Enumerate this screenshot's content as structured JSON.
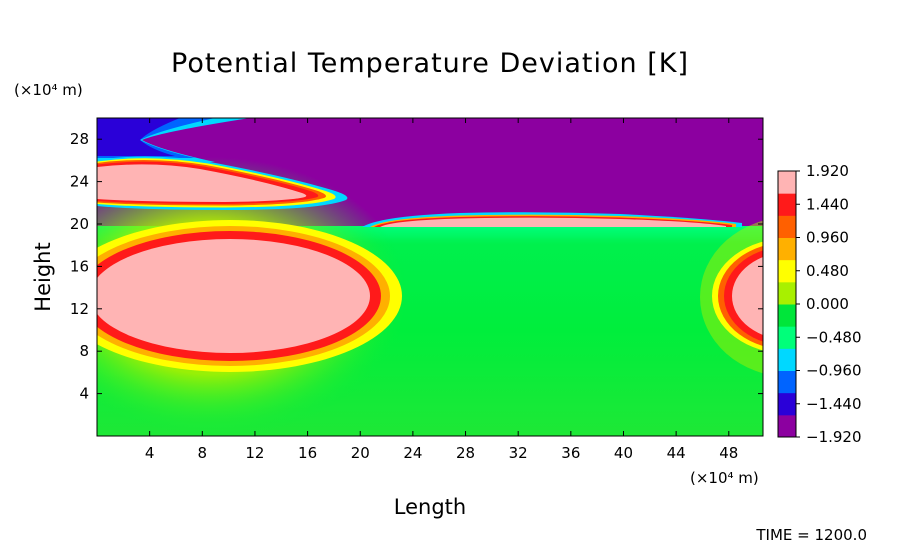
{
  "chart_data": {
    "type": "heatmap",
    "title": "Potential Temperature Deviation [K]",
    "xlabel": "Length",
    "ylabel": "Height",
    "x_unit": "(×10⁴ m)",
    "y_unit": "(×10⁴ m)",
    "xlim": [
      0,
      50.6
    ],
    "ylim": [
      0,
      30
    ],
    "x_ticks": [
      "4",
      "8",
      "12",
      "16",
      "20",
      "24",
      "28",
      "32",
      "36",
      "40",
      "44",
      "48"
    ],
    "y_ticks": [
      "4",
      "8",
      "12",
      "16",
      "20",
      "24",
      "28"
    ],
    "colorbar": {
      "min": -1.92,
      "max": 1.92,
      "tick_labels": [
        "1.920",
        "1.440",
        "0.960",
        "0.480",
        "0.000",
        "−0.480",
        "−0.960",
        "−1.440",
        "−1.920"
      ],
      "colors": [
        "#8c00a0",
        "#2a00d8",
        "#0064ff",
        "#00d8ff",
        "#00ff7a",
        "#00e63a",
        "#a8f000",
        "#ffff00",
        "#ffb000",
        "#ff6000",
        "#ff1a1a",
        "#ffb4b4"
      ]
    },
    "features": [
      {
        "region": "lower layer (0–19.6)",
        "value": 0.0
      },
      {
        "region": "upper layer (19.6–30)",
        "value": -1.92
      },
      {
        "region": "lower-left warm core, x 0–21, height 7.5–18.5",
        "value": 1.92
      },
      {
        "region": "right-edge warm core, x 44–50.6, height 8–18",
        "value": 1.92
      },
      {
        "region": "upper warm lens, x 0–20, height 21.5–26",
        "value": 1.92
      },
      {
        "region": "warm strip along interface, x 21–48, height 19.7–21",
        "value": 1.92
      },
      {
        "region": "cold X near top-left, x 0–10, height 26–30",
        "value": -1.44
      }
    ],
    "annotation": "TIME = 1200.0"
  }
}
